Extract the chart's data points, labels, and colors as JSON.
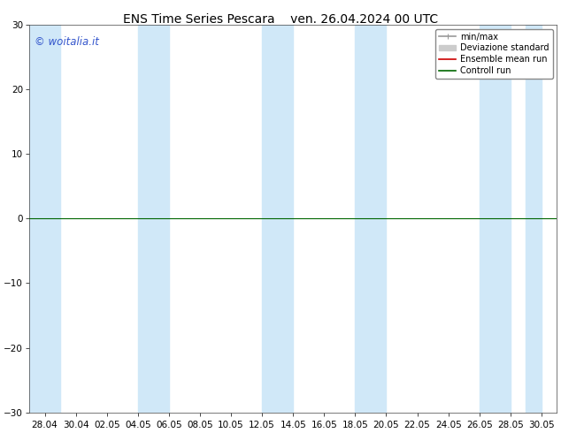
{
  "title_left": "ENS Time Series Pescara",
  "title_right": "ven. 26.04.2024 00 UTC",
  "ylim": [
    -30,
    30
  ],
  "yticks": [
    -30,
    -20,
    -10,
    0,
    10,
    20,
    30
  ],
  "xtick_labels": [
    "28.04",
    "30.04",
    "02.05",
    "04.05",
    "06.05",
    "08.05",
    "10.05",
    "12.05",
    "14.05",
    "16.05",
    "18.05",
    "20.05",
    "22.05",
    "24.05",
    "26.05",
    "28.05",
    "30.05"
  ],
  "background_color": "#ffffff",
  "band_color": "#d0e8f8",
  "zero_line_color": "#006600",
  "watermark_text": "© woitalia.it",
  "watermark_color": "#3355cc",
  "legend_items": [
    {
      "label": "min/max",
      "color": "#999999",
      "lw": 1.2
    },
    {
      "label": "Deviazione standard",
      "color": "#cccccc",
      "lw": 5
    },
    {
      "label": "Ensemble mean run",
      "color": "#cc0000",
      "lw": 1.2
    },
    {
      "label": "Controll run",
      "color": "#006600",
      "lw": 1.2
    }
  ],
  "title_fontsize": 10,
  "tick_fontsize": 7.5,
  "legend_fontsize": 7,
  "figsize": [
    6.34,
    4.9
  ],
  "dpi": 100,
  "band_positions": [
    0,
    3,
    4,
    8,
    10,
    11,
    14,
    15,
    17
  ]
}
